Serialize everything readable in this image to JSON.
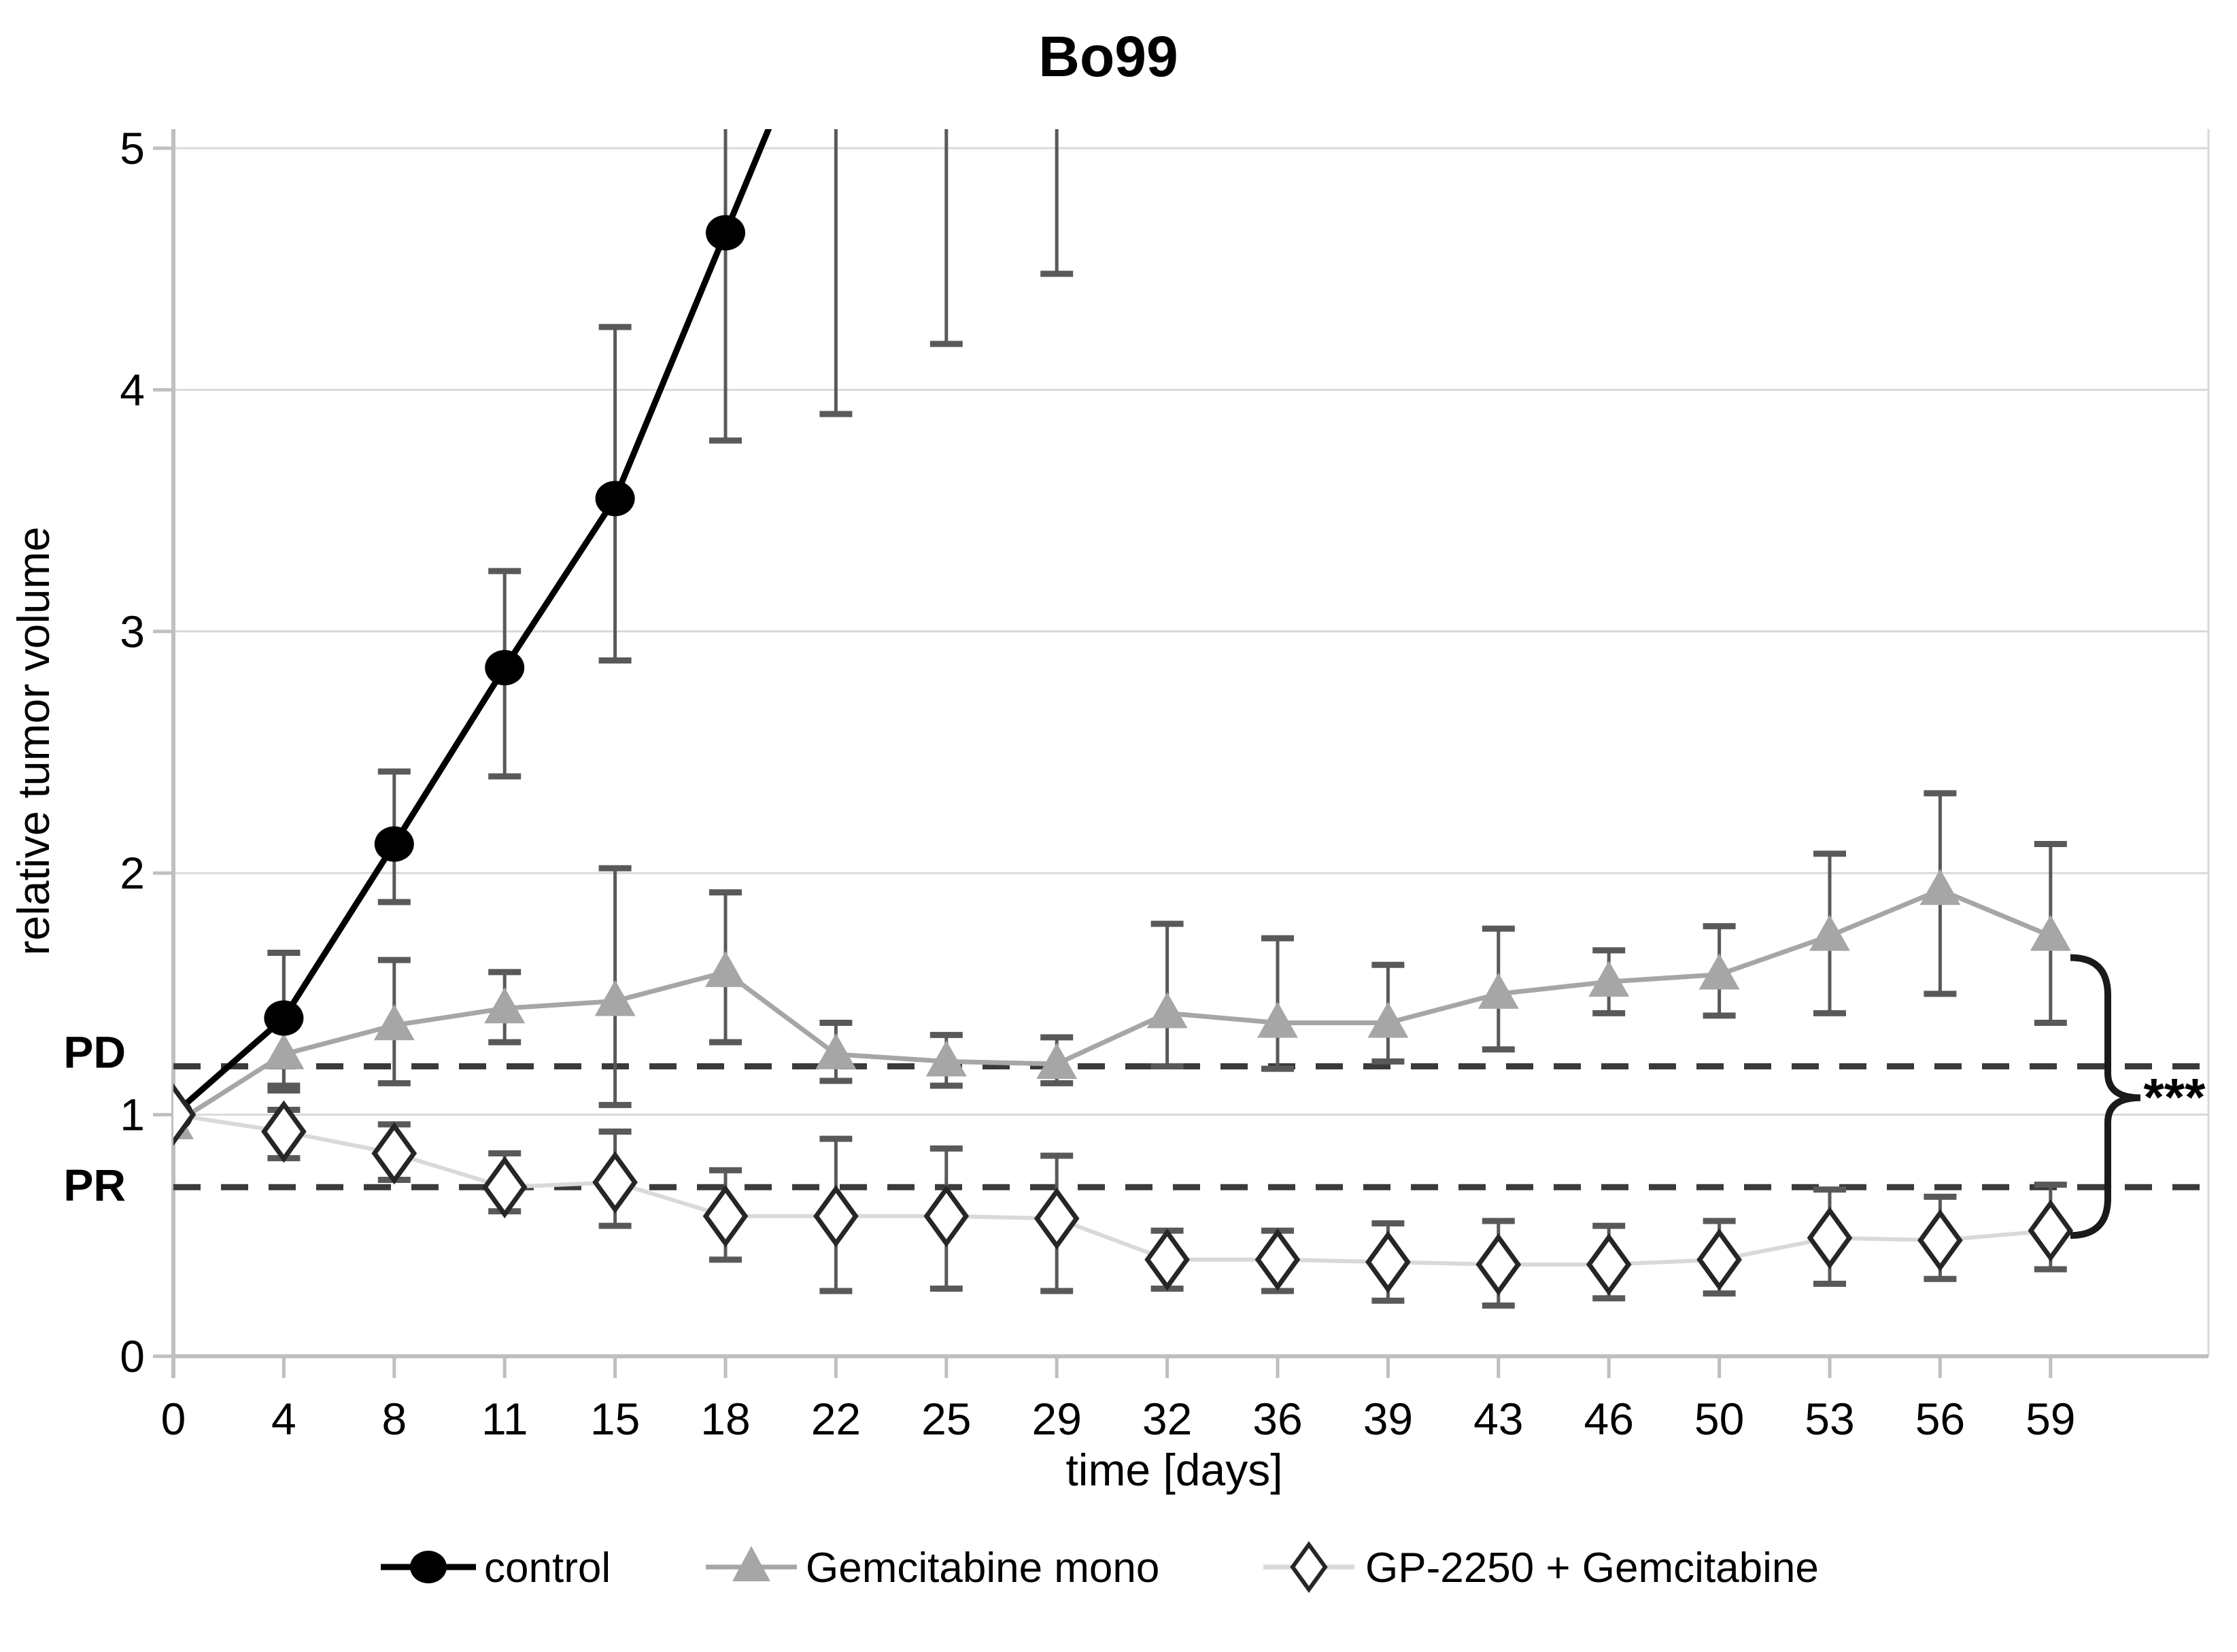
{
  "title": "Bo99",
  "axes": {
    "y_label": "relative tumor volume",
    "x_label": "time [days]",
    "y_ticks": [
      0,
      1,
      2,
      3,
      4,
      5
    ],
    "x_tick_labels": [
      "0",
      "4",
      "8",
      "11",
      "15",
      "18",
      "22",
      "25",
      "29",
      "32",
      "36",
      "39",
      "43",
      "46",
      "50",
      "53",
      "56",
      "59"
    ]
  },
  "reference_lines": [
    {
      "id": "pd",
      "label": "PD",
      "value": 1.2
    },
    {
      "id": "pr",
      "label": "PR",
      "value": 0.7
    }
  ],
  "significance": {
    "label": "***",
    "span_high": 1.65,
    "span_low": 0.5,
    "pointer_value": 1.07
  },
  "legend": [
    {
      "label": "control",
      "marker": "circle"
    },
    {
      "label": "Gemcitabine mono",
      "marker": "triangle"
    },
    {
      "label": "GP-2250 + Gemcitabine",
      "marker": "diamond"
    }
  ],
  "colors": {
    "control": "#000000",
    "gemcitabine": "#a6a6a6",
    "gp2250_line": "#d9d9d9",
    "gp2250_marker_stroke": "#262626",
    "error_bar": "#595959",
    "gridline": "#d9d9d9",
    "axis": "#bfbfbf",
    "reference_line": "#3a3a3a",
    "text": "#000000"
  },
  "chart_data": {
    "type": "line",
    "title": "Bo99",
    "xlabel": "time [days]",
    "ylabel": "relative tumor volume",
    "ylim": [
      0,
      5
    ],
    "grid": "horizontal",
    "legend_position": "bottom",
    "categories": [
      0,
      4,
      8,
      11,
      15,
      18,
      22,
      25,
      29,
      32,
      36,
      39,
      43,
      46,
      50,
      53,
      56,
      59
    ],
    "series": [
      {
        "name": "control",
        "marker": "circle",
        "values": [
          1.0,
          1.4,
          2.12,
          2.85,
          3.55,
          4.65,
          null,
          null,
          null,
          null,
          null,
          null,
          null,
          null,
          null,
          null,
          null,
          null
        ],
        "err_low": [
          null,
          1.1,
          1.88,
          2.4,
          2.88,
          3.79,
          3.9,
          4.19,
          4.48,
          null,
          null,
          null,
          null,
          null,
          null,
          null,
          null,
          null
        ],
        "err_high": [
          null,
          1.67,
          2.42,
          3.25,
          4.26,
          "clip",
          "clip",
          "clip",
          "clip",
          null,
          null,
          null,
          null,
          null,
          null,
          null,
          null,
          null
        ],
        "continues_offscale_above_ymax": true
      },
      {
        "name": "Gemcitabine mono",
        "marker": "triangle",
        "values": [
          0.96,
          1.25,
          1.37,
          1.44,
          1.47,
          1.59,
          1.25,
          1.22,
          1.21,
          1.42,
          1.38,
          1.38,
          1.5,
          1.55,
          1.58,
          1.74,
          1.93,
          1.74
        ],
        "err_low": [
          null,
          1.12,
          1.13,
          1.3,
          1.04,
          1.3,
          1.14,
          1.12,
          1.13,
          1.2,
          1.19,
          1.22,
          1.27,
          1.42,
          1.41,
          1.42,
          1.5,
          1.38
        ],
        "err_high": [
          null,
          1.67,
          1.64,
          1.59,
          2.02,
          1.92,
          1.38,
          1.33,
          1.32,
          1.79,
          1.73,
          1.62,
          1.77,
          1.68,
          1.78,
          2.08,
          2.33,
          2.12
        ],
        "continues_offscale_above_ymax": false
      },
      {
        "name": "GP-2250 + Gemcitabine",
        "marker": "diamond",
        "values": [
          1.0,
          0.93,
          0.84,
          0.7,
          0.72,
          0.58,
          0.58,
          0.58,
          0.57,
          0.4,
          0.4,
          0.39,
          0.38,
          0.38,
          0.4,
          0.49,
          0.48,
          0.52
        ],
        "err_low": [
          null,
          0.82,
          0.73,
          0.6,
          0.54,
          0.4,
          0.27,
          0.28,
          0.27,
          0.28,
          0.27,
          0.23,
          0.21,
          0.24,
          0.26,
          0.3,
          0.32,
          0.36
        ],
        "err_high": [
          null,
          1.02,
          0.96,
          0.84,
          0.93,
          0.77,
          0.9,
          0.86,
          0.83,
          0.52,
          0.52,
          0.55,
          0.56,
          0.54,
          0.56,
          0.69,
          0.66,
          0.71
        ],
        "continues_offscale_above_ymax": false
      }
    ],
    "reference_lines": [
      {
        "label": "PD",
        "value": 1.2,
        "style": "dashed"
      },
      {
        "label": "PR",
        "value": 0.7,
        "style": "dashed"
      }
    ],
    "annotations": [
      {
        "text": "***",
        "type": "significance-bracket",
        "span": [
          0.5,
          1.65
        ],
        "side": "right"
      }
    ]
  }
}
